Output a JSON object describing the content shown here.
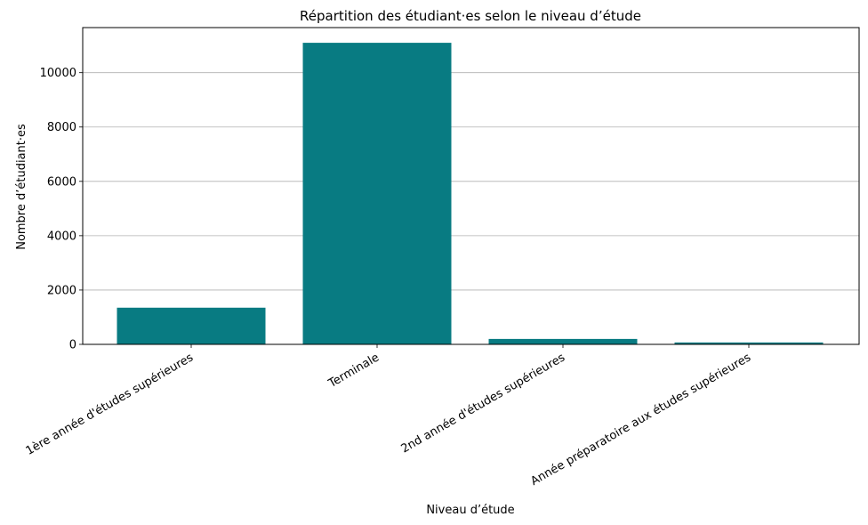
{
  "chart_data": {
    "type": "bar",
    "title": "Répartition des étudiant·es selon le niveau d’étude",
    "xlabel": "Niveau d’étude",
    "ylabel": "Nombre d’étudiant·es",
    "categories": [
      "1ère année d'études supérieures",
      "Terminale",
      "2nd année d'études supérieures",
      "Année préparatoire aux études supérieures"
    ],
    "values": [
      1350,
      11100,
      200,
      70
    ],
    "ylim": [
      0,
      11660
    ],
    "yticks": [
      0,
      2000,
      4000,
      6000,
      8000,
      10000
    ],
    "grid": "y",
    "bar_color": "#087b82"
  }
}
